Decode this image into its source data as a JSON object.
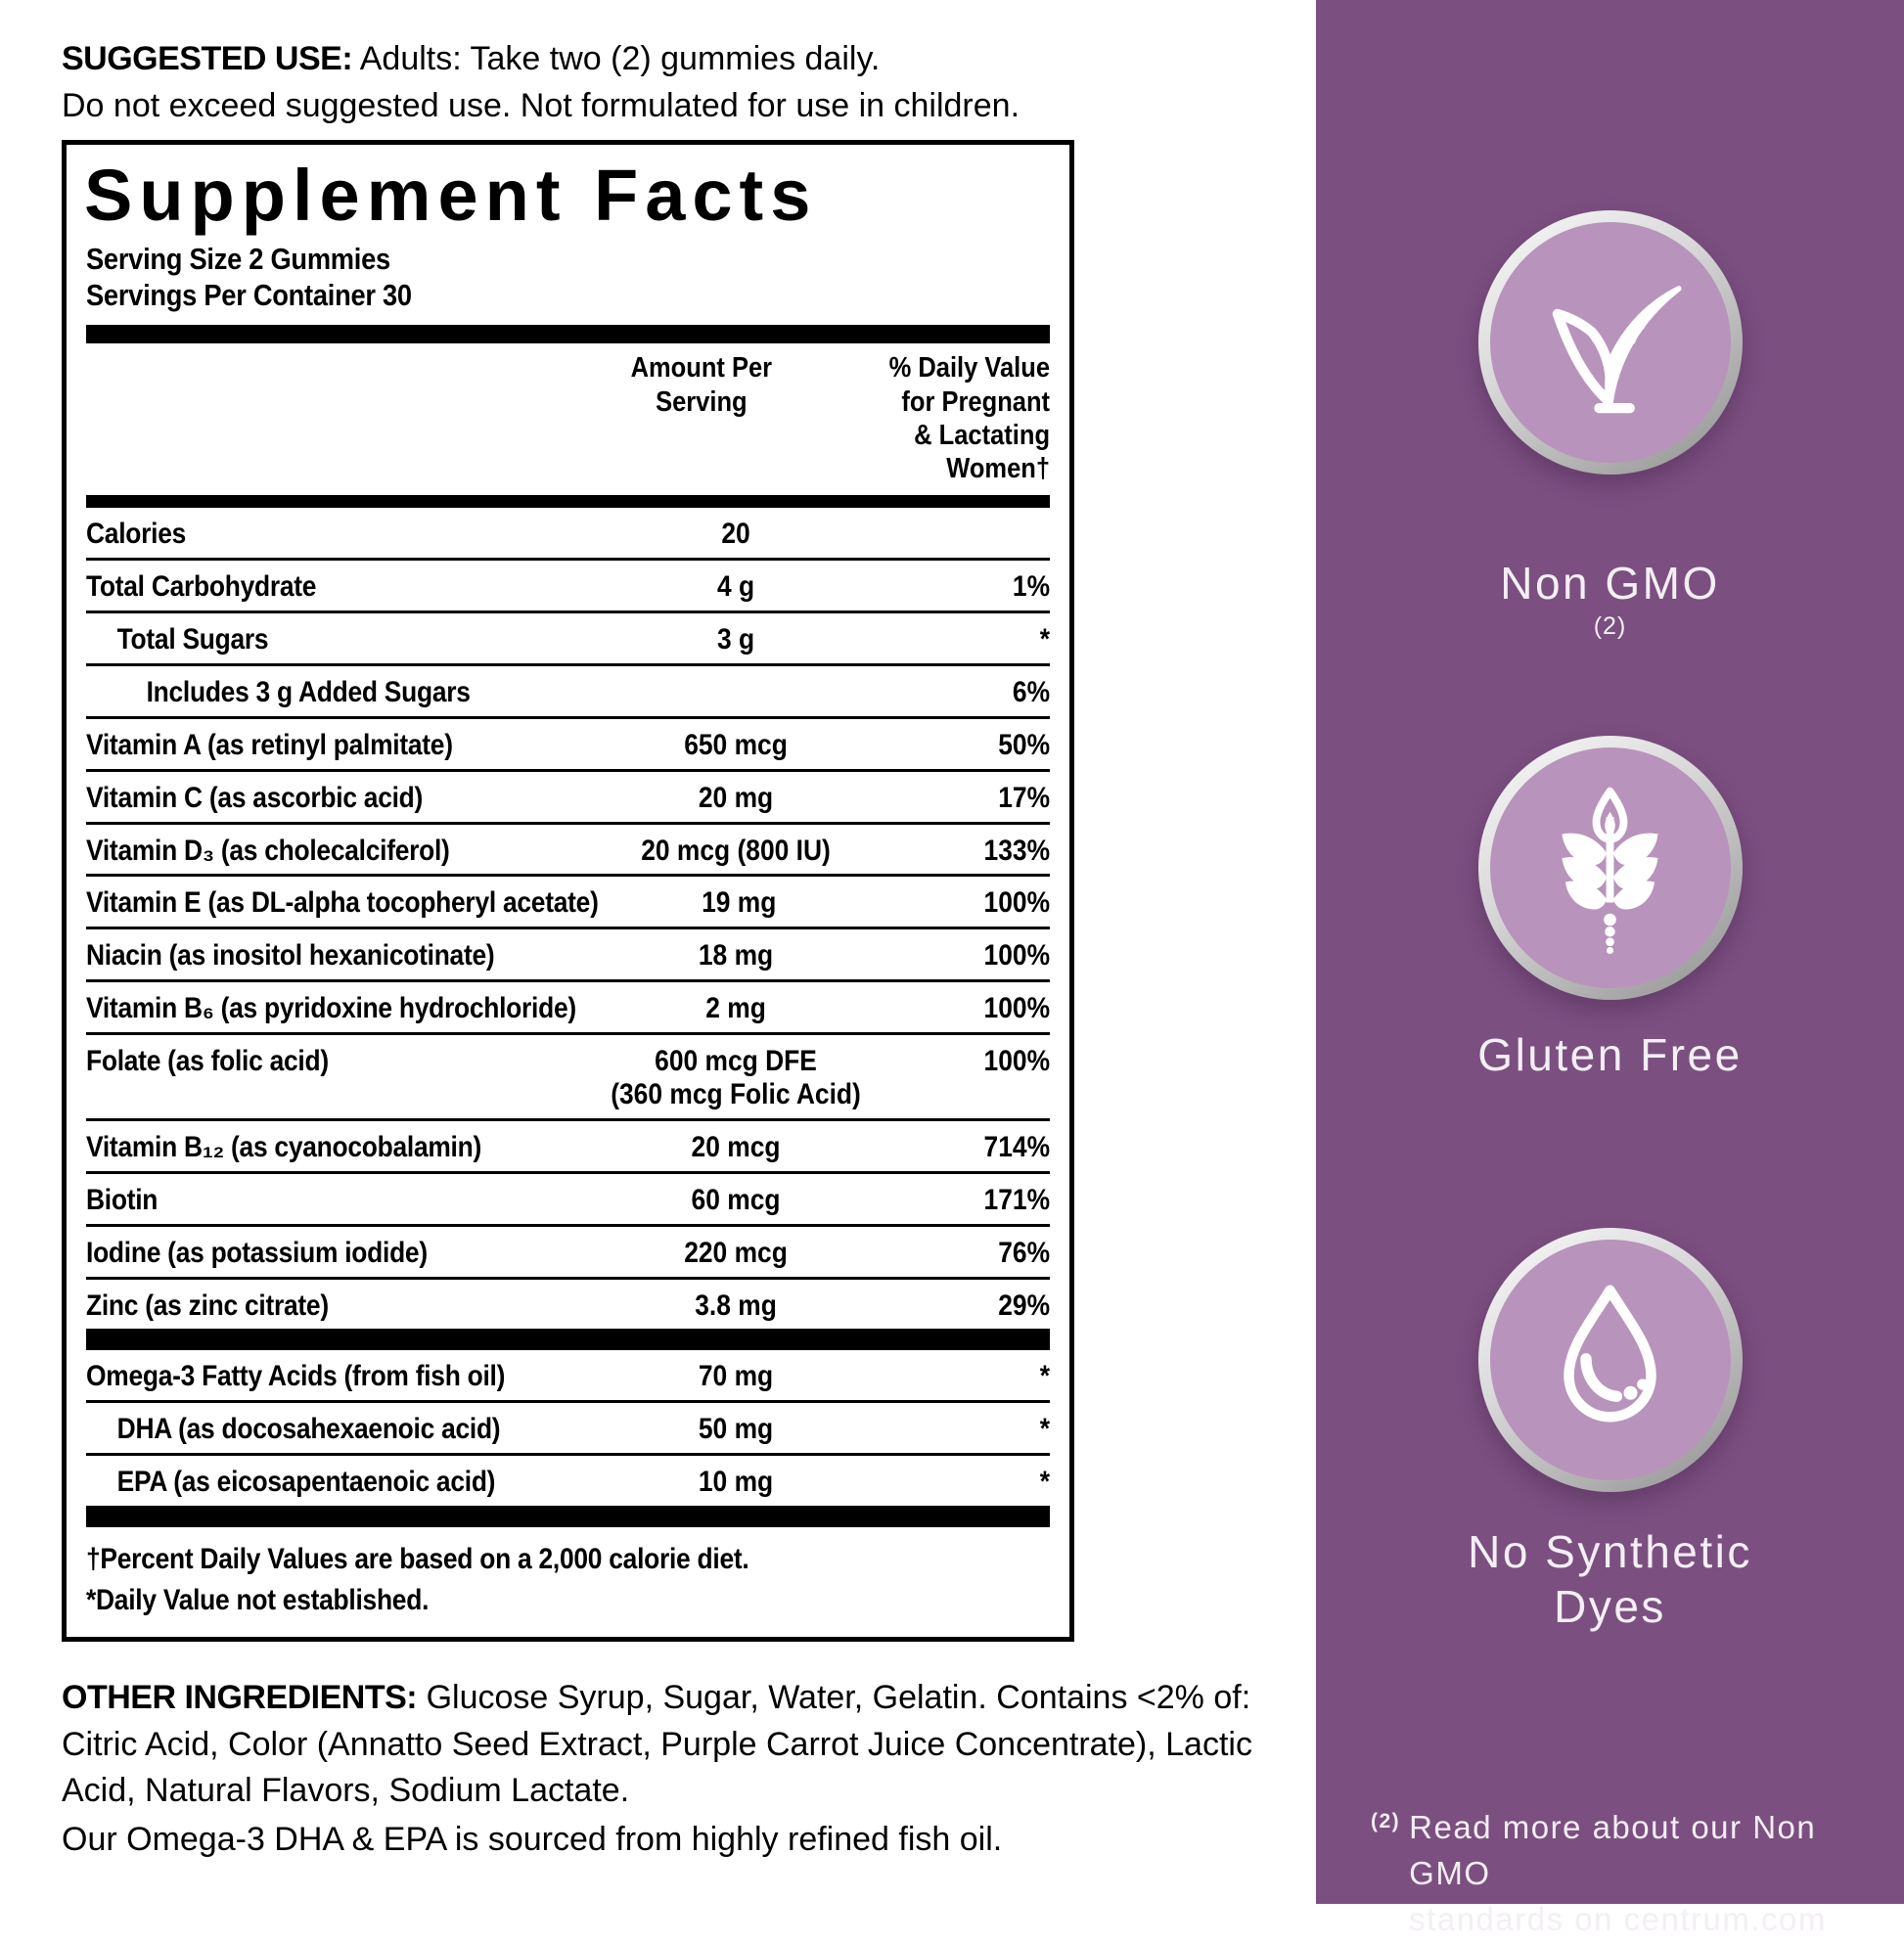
{
  "suggested_use": {
    "label": "SUGGESTED USE:",
    "text": "Adults: Take two (2) gummies daily.",
    "line2": "Do not exceed suggested use. Not formulated for use in children."
  },
  "supplement_facts": {
    "title": "Supplement Facts",
    "serving_size": "Serving Size 2 Gummies",
    "servings_per_container": "Servings Per Container 30",
    "columns": {
      "amount": "Amount Per\nServing",
      "daily_value": "% Daily Value\nfor Pregnant\n& Lactating\nWomen†"
    },
    "rows": [
      {
        "name": "Calories",
        "amount": "20",
        "dv": "",
        "indent": 0
      },
      {
        "name": "Total Carbohydrate",
        "amount": "4 g",
        "dv": "1%",
        "indent": 0
      },
      {
        "name": "Total Sugars",
        "amount": "3 g",
        "dv": "*",
        "indent": 1
      },
      {
        "name": "Includes 3 g Added Sugars",
        "amount": "",
        "dv": "6%",
        "indent": 2
      },
      {
        "name": "Vitamin A (as retinyl palmitate)",
        "amount": "650 mcg",
        "dv": "50%",
        "indent": 0
      },
      {
        "name": "Vitamin C (as ascorbic acid)",
        "amount": "20 mg",
        "dv": "17%",
        "indent": 0
      },
      {
        "name": "Vitamin D₃ (as cholecalciferol)",
        "amount": "20 mcg (800 IU)",
        "dv": "133%",
        "indent": 0
      },
      {
        "name": "Vitamin E (as DL-alpha tocopheryl acetate)",
        "amount": "19 mg",
        "dv": "100%",
        "indent": 0
      },
      {
        "name": "Niacin (as inositol hexanicotinate)",
        "amount": "18 mg",
        "dv": "100%",
        "indent": 0
      },
      {
        "name": "Vitamin B₆ (as pyridoxine hydrochloride)",
        "amount": "2 mg",
        "dv": "100%",
        "indent": 0
      },
      {
        "name": "Folate (as folic acid)",
        "amount": "600 mcg DFE\n(360 mcg Folic Acid)",
        "dv": "100%",
        "indent": 0
      },
      {
        "name": "Vitamin B₁₂ (as cyanocobalamin)",
        "amount": "20 mcg",
        "dv": "714%",
        "indent": 0
      },
      {
        "name": "Biotin",
        "amount": "60 mcg",
        "dv": "171%",
        "indent": 0
      },
      {
        "name": "Iodine (as potassium iodide)",
        "amount": "220 mcg",
        "dv": "76%",
        "indent": 0
      },
      {
        "name": "Zinc (as zinc citrate)",
        "amount": "3.8 mg",
        "dv": "29%",
        "indent": 0,
        "bar_after": true
      },
      {
        "name": "Omega-3 Fatty Acids (from fish oil)",
        "amount": "70 mg",
        "dv": "*",
        "indent": 0
      },
      {
        "name": "DHA (as docosahexaenoic acid)",
        "amount": "50 mg",
        "dv": "*",
        "indent": 1
      },
      {
        "name": "EPA (as eicosapentaenoic acid)",
        "amount": "10 mg",
        "dv": "*",
        "indent": 1,
        "bar_after": true
      }
    ],
    "footnotes": [
      "†Percent Daily Values are based on a 2,000 calorie diet.",
      "*Daily Value not established."
    ]
  },
  "other_ingredients": {
    "label": "OTHER INGREDIENTS:",
    "text": "Glucose Syrup, Sugar, Water, Gelatin. Contains <2% of: Citric Acid, Color (Annatto Seed Extract, Purple Carrot Juice Concentrate), Lactic Acid, Natural Flavors, Sodium Lactate.",
    "note": "Our Omega-3 DHA & EPA is sourced from highly refined fish oil."
  },
  "panel": {
    "badges": [
      {
        "label": "Non GMO",
        "superscript": "(2)",
        "icon": "check-leaf-icon"
      },
      {
        "label": "Gluten Free",
        "icon": "wheat-icon"
      },
      {
        "label": "No Synthetic\nDyes",
        "icon": "droplet-icon"
      }
    ],
    "footnote": {
      "superscript": "(2)",
      "text": "Read more about our Non GMO\nstandards on centrum.com"
    },
    "colors": {
      "background": "#7B4F80",
      "badge_fill": "#B893BB",
      "text": "#F4EEF5"
    }
  }
}
